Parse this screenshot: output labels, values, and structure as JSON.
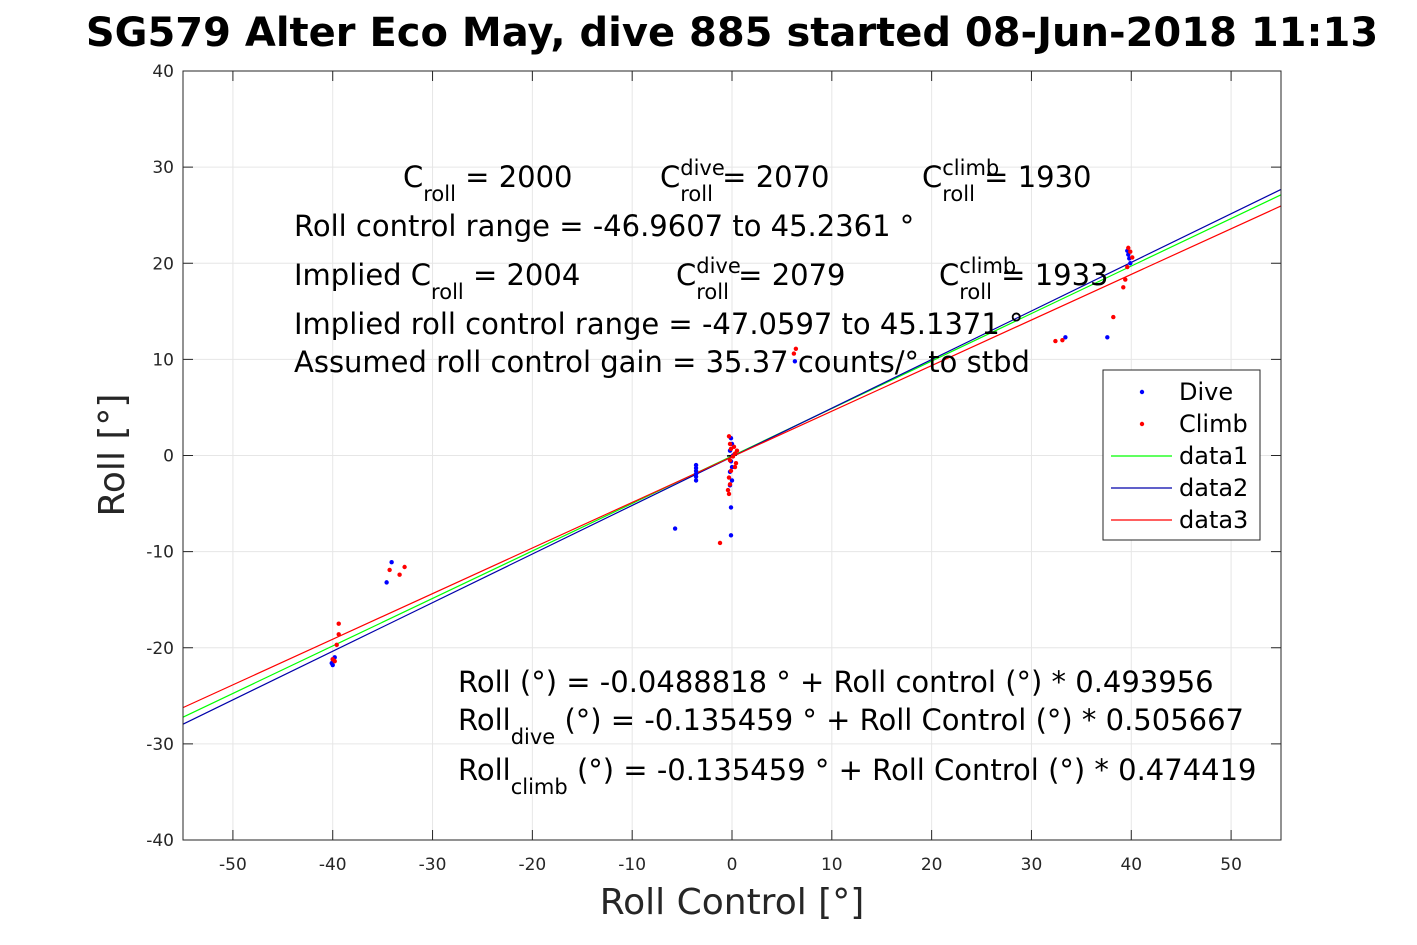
{
  "chart_data": {
    "type": "scatter",
    "title": "SG579 Alter Eco May, dive 885 started 08-Jun-2018 11:13",
    "xlabel": "Roll Control [°]",
    "ylabel": "Roll [°]",
    "xlim": [
      -55,
      55
    ],
    "ylim": [
      -40,
      40
    ],
    "xticks": [
      -50,
      -40,
      -30,
      -20,
      -10,
      0,
      10,
      20,
      30,
      40,
      50
    ],
    "yticks": [
      -40,
      -30,
      -20,
      -10,
      0,
      10,
      20,
      30,
      40
    ],
    "grid": true,
    "legend_position": "right",
    "series": [
      {
        "name": "Dive",
        "kind": "points",
        "color": "#0000ff",
        "points": [
          [
            -40.1,
            -21.6
          ],
          [
            -40.0,
            -21.2
          ],
          [
            -39.9,
            -21.4
          ],
          [
            -39.8,
            -21.0
          ],
          [
            -40.0,
            -21.8
          ],
          [
            -34.6,
            -13.2
          ],
          [
            -34.1,
            -11.1
          ],
          [
            -5.7,
            -7.6
          ],
          [
            -3.6,
            -1.0
          ],
          [
            -3.6,
            -1.3
          ],
          [
            -3.6,
            -1.6
          ],
          [
            -3.6,
            -1.9
          ],
          [
            -3.6,
            -2.2
          ],
          [
            -3.6,
            -2.6
          ],
          [
            -0.1,
            1.8
          ],
          [
            0.0,
            1.2
          ],
          [
            -0.2,
            0.5
          ],
          [
            0.1,
            0.0
          ],
          [
            -0.1,
            -0.6
          ],
          [
            0.0,
            -1.2
          ],
          [
            -0.2,
            -1.7
          ],
          [
            0.0,
            -2.6
          ],
          [
            -0.2,
            -3.1
          ],
          [
            -0.1,
            -5.4
          ],
          [
            -0.1,
            -8.3
          ],
          [
            6.3,
            9.8
          ],
          [
            33.4,
            12.3
          ],
          [
            37.6,
            12.3
          ],
          [
            39.6,
            21.3
          ],
          [
            39.8,
            20.5
          ],
          [
            39.9,
            20.0
          ],
          [
            39.7,
            20.9
          ]
        ]
      },
      {
        "name": "Climb",
        "kind": "points",
        "color": "#ff0000",
        "points": [
          [
            -40.0,
            -21.2
          ],
          [
            -39.8,
            -21.4
          ],
          [
            -39.6,
            -19.7
          ],
          [
            -39.4,
            -18.6
          ],
          [
            -39.4,
            -17.5
          ],
          [
            -34.3,
            -11.9
          ],
          [
            -33.3,
            -12.4
          ],
          [
            -32.8,
            -11.6
          ],
          [
            -1.2,
            -9.1
          ],
          [
            -0.3,
            2.0
          ],
          [
            -0.2,
            1.2
          ],
          [
            -0.1,
            0.7
          ],
          [
            0.2,
            0.9
          ],
          [
            0.5,
            0.5
          ],
          [
            0.3,
            0.2
          ],
          [
            0.1,
            -0.1
          ],
          [
            -0.2,
            -0.5
          ],
          [
            0.4,
            -0.8
          ],
          [
            0.3,
            -1.2
          ],
          [
            -0.1,
            -1.6
          ],
          [
            -0.3,
            -2.3
          ],
          [
            -0.2,
            -3.0
          ],
          [
            -0.4,
            -3.6
          ],
          [
            -0.3,
            -4.0
          ],
          [
            6.4,
            11.1
          ],
          [
            6.2,
            10.6
          ],
          [
            32.4,
            11.9
          ],
          [
            33.1,
            12.0
          ],
          [
            38.2,
            14.4
          ],
          [
            39.7,
            21.6
          ],
          [
            39.9,
            21.2
          ],
          [
            40.1,
            20.6
          ],
          [
            39.6,
            19.6
          ],
          [
            39.4,
            18.3
          ],
          [
            39.2,
            17.5
          ]
        ]
      },
      {
        "name": "data1",
        "kind": "line",
        "color": "#00ff00",
        "x": [
          -55,
          55
        ],
        "y": [
          -27.22,
          27.12
        ]
      },
      {
        "name": "data2",
        "kind": "line",
        "color": "#0000aa",
        "x": [
          -55,
          55
        ],
        "y": [
          -27.95,
          27.68
        ]
      },
      {
        "name": "data3",
        "kind": "line",
        "color": "#ff0000",
        "x": [
          -55,
          55
        ],
        "y": [
          -26.23,
          25.96
        ]
      }
    ],
    "center_marker": {
      "color": "#000000",
      "x": [
        -0.5,
        0.5
      ],
      "y": [
        -0.05,
        0.05
      ]
    },
    "annotations_top": {
      "line1": [
        {
          "base": "C",
          "sup": "",
          "sub": "roll",
          "rest": " = 2000"
        },
        {
          "base": "C",
          "sup": "dive",
          "sub": "roll",
          "rest": " = 2070"
        },
        {
          "base": "C",
          "sup": "climb",
          "sub": "roll",
          "rest": " = 1930"
        }
      ],
      "line2": "Roll control range = -46.9607 to 45.2361 °",
      "line3": [
        {
          "base": "Implied C",
          "sup": "",
          "sub": "roll",
          "rest": " = 2004"
        },
        {
          "base": "C",
          "sup": "dive",
          "sub": "roll",
          "rest": " = 2079"
        },
        {
          "base": "C",
          "sup": "climb",
          "sub": "roll",
          "rest": " = 1933"
        }
      ],
      "line4": "Implied roll control range = -47.0597 to 45.1371 °",
      "line5": "Assumed roll control gain = 35.37 counts/° to stbd"
    },
    "annotations_bottom": {
      "fit1": "Roll (°) = -0.0488818 ° + Roll control (°) * 0.493956",
      "fit2": {
        "base": "Roll",
        "sub": "dive",
        "rest": " (°) = -0.135459 ° + Roll Control (°) * 0.505667"
      },
      "fit3": {
        "base": "Roll",
        "sub": "climb",
        "rest": " (°) = -0.135459 ° + Roll Control (°) * 0.474419"
      }
    }
  }
}
